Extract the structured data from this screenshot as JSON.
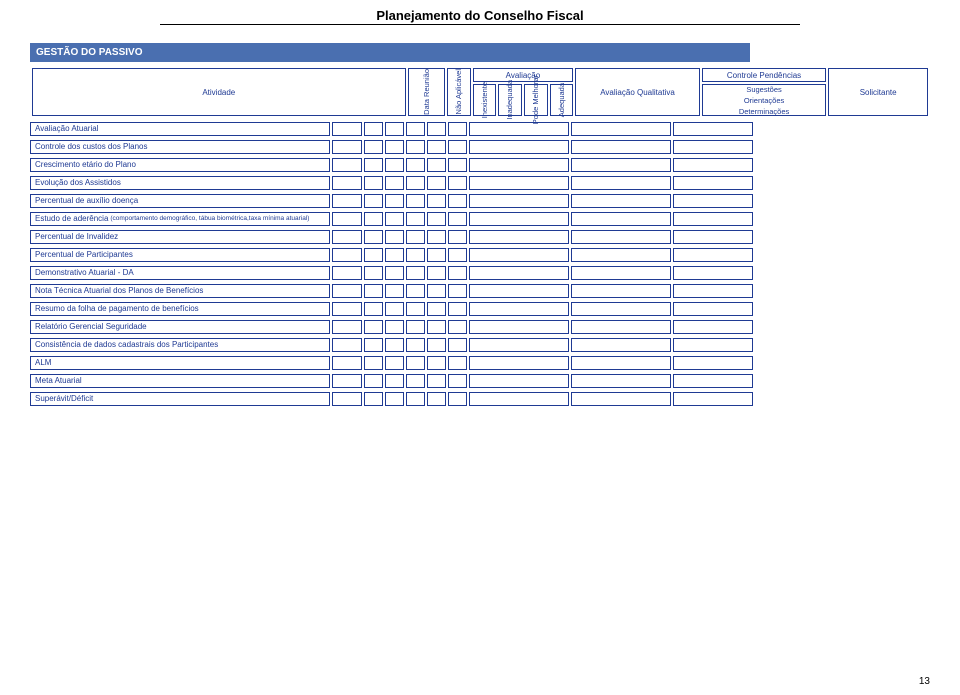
{
  "document": {
    "title": "Planejamento do Conselho Fiscal",
    "page_number": "13"
  },
  "section": {
    "title": "GESTÃO DO PASSIVO"
  },
  "header": {
    "activity_label": "Atividade",
    "date_label": "Data Reunião",
    "avaliacao_group": "Avaliação",
    "nao_aplicavel": "Não Aplicável",
    "inexistente": "Inexistente",
    "inadequada": "Inadequada",
    "pode_melhorar": "Pode Melhorar",
    "adequada": "Adequada",
    "avaliacao_qualitativa": "Avaliação Qualitativa",
    "controle_pendencias": "Controle Pendências",
    "sugestoes": "Sugestões",
    "orientacoes": "Orientações",
    "determinacoes": "Determinações",
    "solicitante": "Solicitante"
  },
  "rows": [
    {
      "label": "Avaliação Atuarial",
      "sub": ""
    },
    {
      "label": "Controle dos custos dos Planos",
      "sub": ""
    },
    {
      "label": "Crescimento etário do Plano",
      "sub": ""
    },
    {
      "label": "Evolução dos Assistidos",
      "sub": ""
    },
    {
      "label": "Percentual de auxílio doença",
      "sub": ""
    },
    {
      "label": "Estudo de aderência",
      "sub": "(comportamento demográfico, tábua biométrica,taxa mínima atuarial)"
    },
    {
      "label": "Percentual de Invalidez",
      "sub": ""
    },
    {
      "label": "Percentual de Participantes",
      "sub": ""
    },
    {
      "label": "Demonstrativo Atuarial - DA",
      "sub": ""
    },
    {
      "label": "Nota Técnica Atuarial dos Planos de Benefícios",
      "sub": ""
    },
    {
      "label": "Resumo da folha de pagamento de benefícios",
      "sub": ""
    },
    {
      "label": "Relatório Gerencial Seguridade",
      "sub": ""
    },
    {
      "label": "Consistência de dados cadastrais dos Participantes",
      "sub": ""
    },
    {
      "label": "ALM",
      "sub": ""
    },
    {
      "label": "Meta Atuarial",
      "sub": ""
    },
    {
      "label": "Superávit/Déficit",
      "sub": ""
    }
  ],
  "colors": {
    "header_bg": "#4a6fb0",
    "border": "#1f3a93",
    "text": "#1f3a93"
  }
}
